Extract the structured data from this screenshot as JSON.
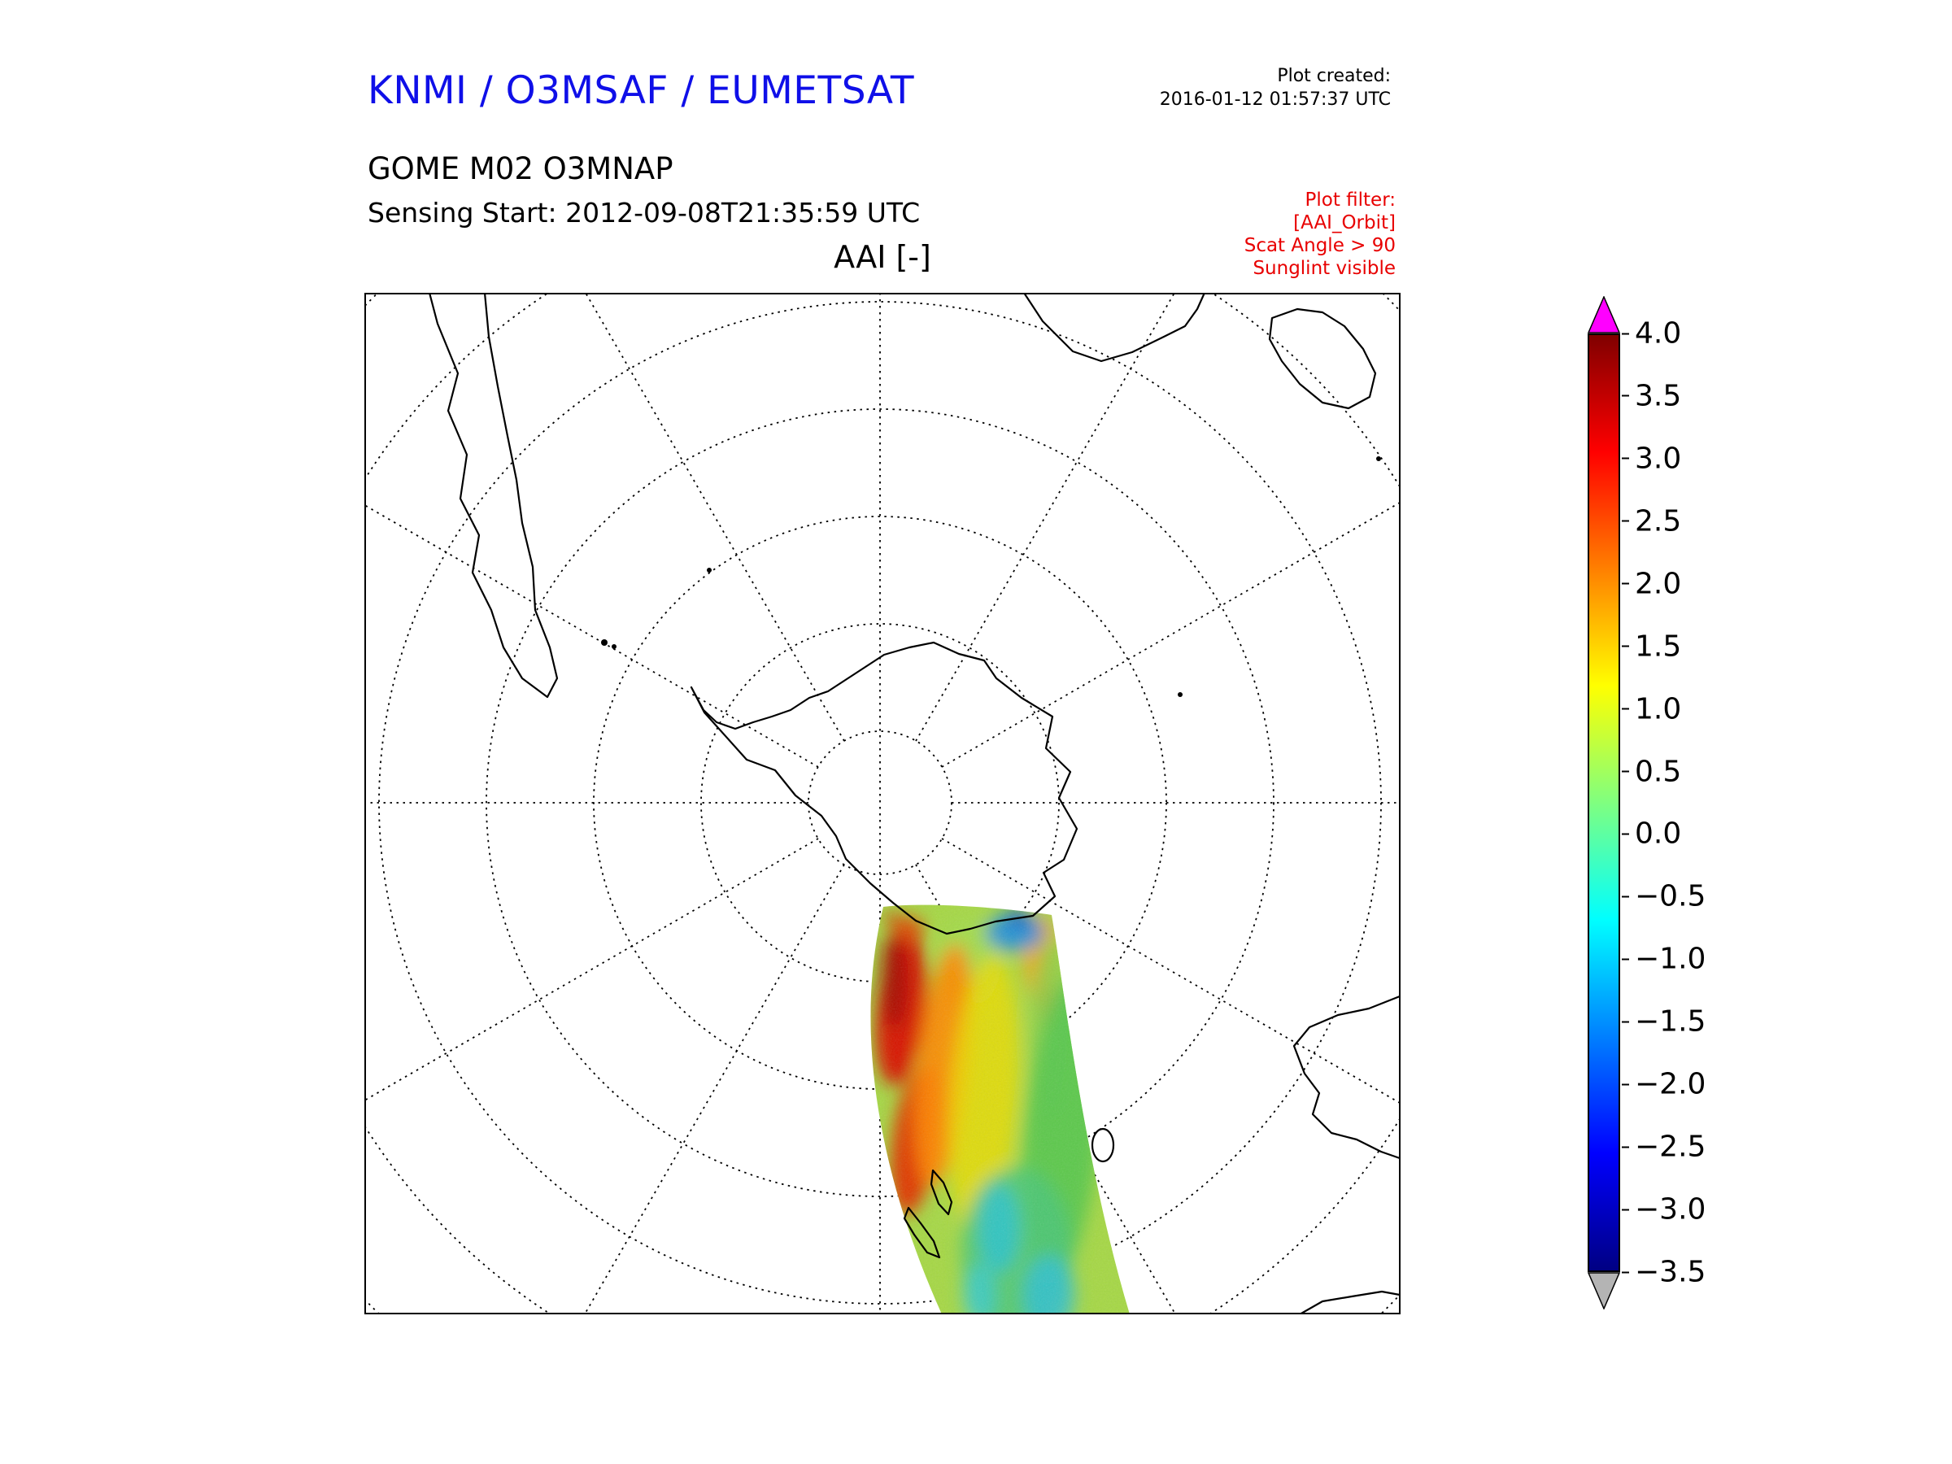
{
  "header": {
    "org_title": "KNMI / O3MSAF / EUMETSAT",
    "plot_created_label": "Plot created:",
    "plot_created_value": "2016-01-12 01:57:37 UTC",
    "instrument_line": "GOME M02 O3MNAP",
    "sensing_start_line": "Sensing Start: 2012-09-08T21:35:59 UTC",
    "filter_lines": [
      "Plot filter:",
      "[AAI_Orbit]",
      "Scat Angle > 90",
      "Sunglint visible"
    ]
  },
  "map": {
    "title": "AAI [-]"
  },
  "colors": {
    "title_blue": "#0f0fe8",
    "filter_red": "#e80000",
    "coastline": "#000000",
    "background": "#ffffff"
  },
  "chart_data": {
    "type": "map",
    "title": "AAI [-]",
    "projection": "south-polar-stereographic",
    "region": "Antarctica and Southern Ocean with tips of South America, Africa, Madagascar, Australia and New Zealand",
    "graticule": {
      "parallels_spacing_deg": 10,
      "meridians_spacing_deg": 30,
      "style": "dotted"
    },
    "colorbar": {
      "label_values": [
        "4.0",
        "3.5",
        "3.0",
        "2.5",
        "2.0",
        "1.5",
        "1.0",
        "0.5",
        "0.0",
        "−0.5",
        "−1.0",
        "−1.5",
        "−2.0",
        "−2.5",
        "−3.0",
        "−3.5"
      ],
      "range": [
        -3.5,
        4.0
      ],
      "tick_step": 0.5,
      "colormap": "jet",
      "over_color": "#ff00ff",
      "under_color": "#b4b4b4",
      "gradient": [
        "#000083 0%",
        "#0000ff 12.5%",
        "#00ffff 37.5%",
        "#ffff00 62.5%",
        "#ff0000 87.5%",
        "#800000 100%"
      ]
    },
    "swath": {
      "description": "Single GOME-2 (Metop-A) orbit swath of Absorbing Aerosol Index, running from the Antarctic coast near the pole to the lower map edge",
      "high_values": "western swath edge, AAI approx 2.5 to 3.5 (red/orange band)",
      "mid_values": "central swath, AAI approx 0.5 to 1.5 (yellow-green)",
      "low_values": "swath head near coast and lower third, AAI approx -0.5 to -2 (cyan/blue patches)"
    }
  }
}
